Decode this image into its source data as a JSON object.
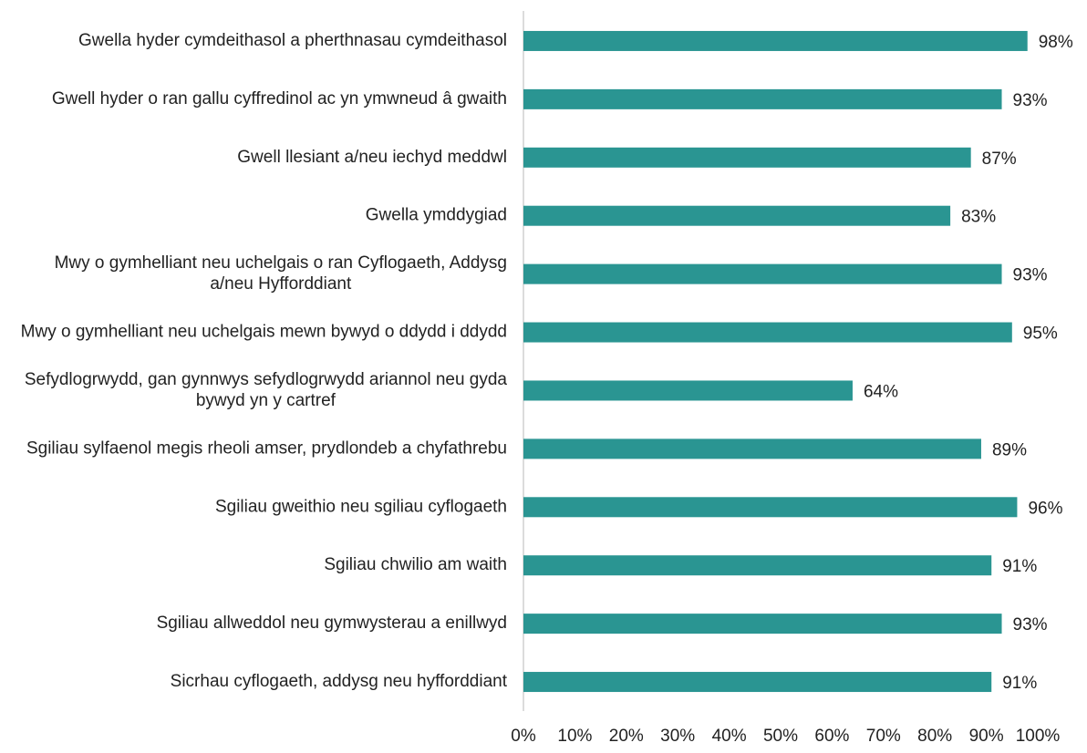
{
  "chart_data": {
    "type": "barh",
    "categories": [
      "Gwella hyder cymdeithasol a pherthnasau cymdeithasol",
      "Gwell hyder o ran gallu cyffredinol ac yn ymwneud â gwaith",
      "Gwell llesiant a/neu iechyd meddwl",
      "Gwella ymddygiad",
      "Mwy o gymhelliant neu uchelgais o ran Cyflogaeth, Addysg a/neu Hyfforddiant",
      "Mwy o gymhelliant neu uchelgais mewn bywyd o ddydd i ddydd",
      "Sefydlogrwydd, gan gynnwys sefydlogrwydd ariannol neu gyda bywyd yn y cartref",
      "Sgiliau sylfaenol megis rheoli amser, prydlondeb a chyfathrebu",
      "Sgiliau gweithio neu sgiliau cyflogaeth",
      "Sgiliau chwilio am waith",
      "Sgiliau allweddol neu gymwysterau a enillwyd",
      "Sicrhau cyflogaeth, addysg neu hyfforddiant"
    ],
    "values": [
      98,
      93,
      87,
      83,
      93,
      95,
      64,
      89,
      96,
      91,
      93,
      91
    ],
    "value_labels": [
      "98%",
      "93%",
      "87%",
      "83%",
      "93%",
      "95%",
      "64%",
      "89%",
      "96%",
      "91%",
      "93%",
      "91%"
    ],
    "color": "#2a9592",
    "xlim": [
      0,
      100
    ],
    "xticks": [
      {
        "value": 0,
        "label": "0%"
      },
      {
        "value": 10,
        "label": "10%"
      },
      {
        "value": 20,
        "label": "20%"
      },
      {
        "value": 30,
        "label": "30%"
      },
      {
        "value": 40,
        "label": "40%"
      },
      {
        "value": 50,
        "label": "50%"
      },
      {
        "value": 60,
        "label": "60%"
      },
      {
        "value": 70,
        "label": "70%"
      },
      {
        "value": 80,
        "label": "80%"
      },
      {
        "value": 90,
        "label": "90%"
      },
      {
        "value": 100,
        "label": "100%"
      }
    ],
    "grid": false
  }
}
